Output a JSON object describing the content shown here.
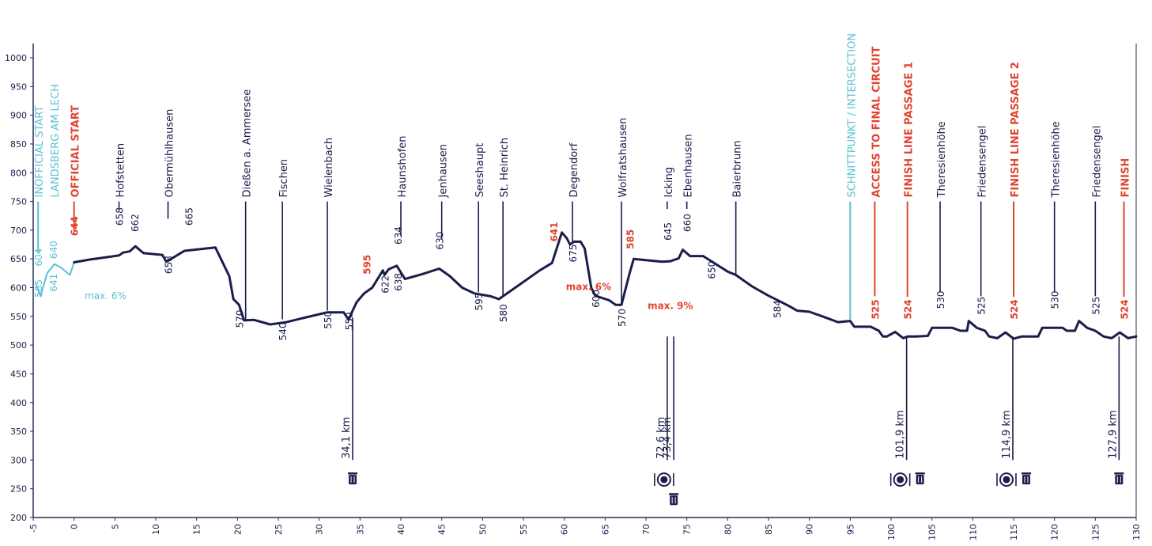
{
  "colors": {
    "navy": "#1b1d4b",
    "red": "#e0432f",
    "teal": "#5cc1d3",
    "axis": "#2a2c57"
  },
  "chart_data": {
    "type": "line",
    "title": "",
    "xlabel": "",
    "ylabel": "",
    "xlim": [
      -5,
      130
    ],
    "ylim": [
      200,
      1000
    ],
    "x_ticks": [
      -5,
      0,
      5,
      10,
      15,
      20,
      25,
      30,
      35,
      40,
      45,
      50,
      55,
      60,
      65,
      70,
      75,
      80,
      85,
      90,
      95,
      100,
      105,
      110,
      115,
      120,
      125,
      130
    ],
    "y_ticks": [
      200,
      250,
      300,
      350,
      400,
      450,
      500,
      550,
      600,
      650,
      700,
      750,
      800,
      850,
      900,
      950,
      1000
    ],
    "series": [
      {
        "name": "unofficial-start-profile",
        "color": "teal",
        "points": [
          [
            -4.6,
            604
          ],
          [
            -4.1,
            585
          ],
          [
            -3.3,
            625
          ],
          [
            -2.4,
            641
          ],
          [
            -1.6,
            635
          ],
          [
            -0.5,
            622
          ],
          [
            0,
            644
          ]
        ]
      },
      {
        "name": "elevation-profile",
        "color": "navy",
        "points": [
          [
            0,
            644
          ],
          [
            2,
            649
          ],
          [
            4,
            653
          ],
          [
            5.5,
            656
          ],
          [
            6,
            661
          ],
          [
            6.8,
            663
          ],
          [
            7.5,
            672
          ],
          [
            8.5,
            660
          ],
          [
            10.8,
            657
          ],
          [
            11.3,
            645
          ],
          [
            13.5,
            664
          ],
          [
            17.3,
            670
          ],
          [
            19,
            620
          ],
          [
            19.5,
            580
          ],
          [
            20.2,
            570
          ],
          [
            20.8,
            543
          ],
          [
            22,
            544
          ],
          [
            24,
            536
          ],
          [
            26,
            540
          ],
          [
            28,
            547
          ],
          [
            31,
            557
          ],
          [
            33,
            557
          ],
          [
            33.6,
            544
          ],
          [
            34.1,
            560
          ],
          [
            34.6,
            575
          ],
          [
            35.5,
            590
          ],
          [
            36.5,
            600
          ],
          [
            37.8,
            630
          ],
          [
            38,
            622
          ],
          [
            38.5,
            632
          ],
          [
            39.5,
            638
          ],
          [
            40.5,
            615
          ],
          [
            42.5,
            623
          ],
          [
            44.7,
            633
          ],
          [
            46,
            620
          ],
          [
            47.5,
            600
          ],
          [
            49,
            590
          ],
          [
            51,
            585
          ],
          [
            52,
            580
          ],
          [
            54,
            600
          ],
          [
            57,
            630
          ],
          [
            58.5,
            643
          ],
          [
            59.7,
            696
          ],
          [
            60.3,
            686
          ],
          [
            60.7,
            675
          ],
          [
            61.2,
            680
          ],
          [
            62,
            680
          ],
          [
            62.5,
            668
          ],
          [
            63.3,
            600
          ],
          [
            63.8,
            586
          ],
          [
            65.5,
            578
          ],
          [
            66.3,
            570
          ],
          [
            67,
            570
          ],
          [
            68,
            625
          ],
          [
            68.5,
            650
          ],
          [
            72,
            645
          ],
          [
            73,
            646
          ],
          [
            74,
            651
          ],
          [
            74.5,
            666
          ],
          [
            75.4,
            655
          ],
          [
            77,
            655
          ],
          [
            80,
            628
          ],
          [
            81,
            622
          ],
          [
            82,
            612
          ],
          [
            83,
            602
          ],
          [
            85,
            586
          ],
          [
            86,
            579
          ],
          [
            87.5,
            568
          ],
          [
            88.5,
            560
          ],
          [
            90,
            558
          ],
          [
            92,
            548
          ],
          [
            93.5,
            540
          ],
          [
            95,
            542
          ],
          [
            95.5,
            532
          ],
          [
            97.5,
            532
          ],
          [
            98.5,
            525
          ],
          [
            99,
            515
          ],
          [
            99.5,
            515
          ],
          [
            100.5,
            523
          ],
          [
            101.5,
            512
          ],
          [
            102,
            515
          ],
          [
            103,
            515
          ],
          [
            104.5,
            516
          ],
          [
            105,
            530
          ],
          [
            106,
            530
          ],
          [
            107.5,
            530
          ],
          [
            108.5,
            525
          ],
          [
            109.3,
            525
          ],
          [
            109.5,
            542
          ],
          [
            110.5,
            530
          ],
          [
            111.5,
            525
          ],
          [
            112,
            515
          ],
          [
            113,
            512
          ],
          [
            114,
            522
          ],
          [
            115,
            511
          ],
          [
            116,
            515
          ],
          [
            118,
            515
          ],
          [
            118.5,
            530
          ],
          [
            119,
            530
          ],
          [
            121,
            530
          ],
          [
            121.5,
            525
          ],
          [
            122.5,
            525
          ],
          [
            123,
            542
          ],
          [
            124,
            530
          ],
          [
            125,
            525
          ],
          [
            126,
            515
          ],
          [
            127,
            512
          ],
          [
            128,
            522
          ],
          [
            129,
            512
          ],
          [
            130,
            515
          ]
        ]
      }
    ],
    "places": [
      {
        "name": "INOFFICIAL START",
        "x": -4.4,
        "tick_top": 750,
        "tick_bottom": 660,
        "color": "teal"
      },
      {
        "name": "LANDSBERG AM LECH",
        "x": -2.5,
        "tick_top": null,
        "tick_bottom": null,
        "color": "teal"
      },
      {
        "name": "OFFICIAL START",
        "x": 0,
        "tick_top": 750,
        "tick_bottom": 700,
        "color": "red"
      },
      {
        "name": "Hofstetten",
        "x": 5.5,
        "tick_top": 750,
        "tick_bottom": 737,
        "color": "navy"
      },
      {
        "name": "Obermühlhausen",
        "x": 11.5,
        "tick_top": 750,
        "tick_bottom": 720,
        "color": "navy"
      },
      {
        "name": "Dießen a. Ammersee",
        "x": 21,
        "tick_top": 750,
        "tick_bottom": 545,
        "color": "navy"
      },
      {
        "name": "Fischen",
        "x": 25.5,
        "tick_top": 750,
        "tick_bottom": 545,
        "color": "navy"
      },
      {
        "name": "Wielenbach",
        "x": 31,
        "tick_top": 750,
        "tick_bottom": 560,
        "color": "navy"
      },
      {
        "name": "Haunshofen",
        "x": 40,
        "tick_top": 750,
        "tick_bottom": 690,
        "color": "navy"
      },
      {
        "name": "Jenhausen",
        "x": 45,
        "tick_top": 750,
        "tick_bottom": 685,
        "color": "navy"
      },
      {
        "name": "Seeshaupt",
        "x": 49.5,
        "tick_top": 750,
        "tick_bottom": 592,
        "color": "navy"
      },
      {
        "name": "St. Heinrich",
        "x": 52.5,
        "tick_top": 750,
        "tick_bottom": 584,
        "color": "navy"
      },
      {
        "name": "Degendorf",
        "x": 61,
        "tick_top": 750,
        "tick_bottom": 680,
        "color": "navy"
      },
      {
        "name": "Wolfratshausen",
        "x": 67,
        "tick_top": 750,
        "tick_bottom": 572,
        "color": "navy"
      },
      {
        "name": "Icking",
        "x": 72.6,
        "tick_top": 750,
        "tick_bottom": 737,
        "color": "navy"
      },
      {
        "name": "Ebenhausen",
        "x": 75,
        "tick_top": 750,
        "tick_bottom": 737,
        "color": "navy"
      },
      {
        "name": "Baierbrunn",
        "x": 81,
        "tick_top": 750,
        "tick_bottom": 624,
        "color": "navy"
      },
      {
        "name": "SCHNITTPUNKT / INTERSECTION",
        "x": 95,
        "tick_top": 750,
        "tick_bottom": 545,
        "color": "teal"
      },
      {
        "name": "ACCESS TO FINAL CIRCUIT",
        "x": 98,
        "tick_top": 750,
        "tick_bottom": 585,
        "color": "red"
      },
      {
        "name": "FINISH LINE PASSAGE 1",
        "x": 102,
        "tick_top": 750,
        "tick_bottom": 584,
        "color": "red"
      },
      {
        "name": "Theresienhöhe",
        "x": 106,
        "tick_top": 750,
        "tick_bottom": 593,
        "color": "navy"
      },
      {
        "name": "Friedensengel",
        "x": 111,
        "tick_top": 750,
        "tick_bottom": 585,
        "color": "navy"
      },
      {
        "name": "FINISH LINE PASSAGE 2",
        "x": 115,
        "tick_top": 750,
        "tick_bottom": 584,
        "color": "red"
      },
      {
        "name": "Theresienhöhe",
        "x": 120,
        "tick_top": 750,
        "tick_bottom": 593,
        "color": "navy"
      },
      {
        "name": "Friedensengel",
        "x": 125,
        "tick_top": 750,
        "tick_bottom": 585,
        "color": "navy"
      },
      {
        "name": "FINISH",
        "x": 128.5,
        "tick_top": 750,
        "tick_bottom": 584,
        "color": "red"
      }
    ],
    "elevation_labels": [
      {
        "text": "585",
        "x": -4.4,
        "y": 583,
        "color": "teal"
      },
      {
        "text": "604",
        "x": -4.4,
        "y": 637,
        "color": "teal"
      },
      {
        "text": "641",
        "x": -2.6,
        "y": 593,
        "color": "teal"
      },
      {
        "text": "640",
        "x": -2.6,
        "y": 650,
        "color": "teal"
      },
      {
        "text": "644",
        "x": 0,
        "y": 690,
        "color": "red"
      },
      {
        "text": "658",
        "x": 5.5,
        "y": 708,
        "color": "navy"
      },
      {
        "text": "662",
        "x": 7.4,
        "y": 697,
        "color": "navy"
      },
      {
        "text": "658",
        "x": 11.5,
        "y": 624,
        "color": "navy"
      },
      {
        "text": "665",
        "x": 14,
        "y": 708,
        "color": "navy"
      },
      {
        "text": "570",
        "x": 20.2,
        "y": 530,
        "color": "navy"
      },
      {
        "text": "540",
        "x": 25.5,
        "y": 508,
        "color": "navy"
      },
      {
        "text": "550",
        "x": 31,
        "y": 528,
        "color": "navy"
      },
      {
        "text": "550",
        "x": 33.6,
        "y": 526,
        "color": "navy"
      },
      {
        "text": "595",
        "x": 35.8,
        "y": 623,
        "color": "red"
      },
      {
        "text": "622",
        "x": 38,
        "y": 590,
        "color": "navy"
      },
      {
        "text": "634",
        "x": 39.6,
        "y": 675,
        "color": "navy"
      },
      {
        "text": "638",
        "x": 39.6,
        "y": 594,
        "color": "navy"
      },
      {
        "text": "630",
        "x": 44.7,
        "y": 666,
        "color": "navy"
      },
      {
        "text": "595",
        "x": 49.5,
        "y": 560,
        "color": "navy"
      },
      {
        "text": "580",
        "x": 52.5,
        "y": 540,
        "color": "navy"
      },
      {
        "text": "641",
        "x": 58.7,
        "y": 680,
        "color": "red"
      },
      {
        "text": "675",
        "x": 61,
        "y": 644,
        "color": "navy"
      },
      {
        "text": "600",
        "x": 63.8,
        "y": 565,
        "color": "navy"
      },
      {
        "text": "585",
        "x": 68,
        "y": 667,
        "color": "red"
      },
      {
        "text": "570",
        "x": 67,
        "y": 532,
        "color": "navy"
      },
      {
        "text": "645",
        "x": 72.6,
        "y": 682,
        "color": "navy"
      },
      {
        "text": "660",
        "x": 75,
        "y": 697,
        "color": "navy"
      },
      {
        "text": "650",
        "x": 78,
        "y": 615,
        "color": "navy"
      },
      {
        "text": "584",
        "x": 86,
        "y": 547,
        "color": "navy"
      },
      {
        "text": "525",
        "x": 98,
        "y": 545,
        "color": "red"
      },
      {
        "text": "524",
        "x": 102,
        "y": 545,
        "color": "red"
      },
      {
        "text": "530",
        "x": 106,
        "y": 563,
        "color": "navy"
      },
      {
        "text": "525",
        "x": 111,
        "y": 553,
        "color": "navy"
      },
      {
        "text": "524",
        "x": 115,
        "y": 545,
        "color": "red"
      },
      {
        "text": "530",
        "x": 120,
        "y": 563,
        "color": "navy"
      },
      {
        "text": "525",
        "x": 125,
        "y": 553,
        "color": "navy"
      },
      {
        "text": "524",
        "x": 128.5,
        "y": 545,
        "color": "red"
      }
    ],
    "annotations": [
      {
        "text": "max. 6%",
        "x": 1.3,
        "y": 580,
        "color": "teal"
      },
      {
        "text": "max. 6%",
        "x": 60.2,
        "y": 596,
        "color": "red"
      },
      {
        "text": "max. 9%",
        "x": 70.2,
        "y": 563,
        "color": "red"
      }
    ],
    "feed_zones": [
      {
        "km": "34,1 km",
        "x": 34.1,
        "icons": [
          "bin"
        ]
      },
      {
        "km": "72,6 km",
        "x": 72.6,
        "icons": [
          "food"
        ]
      },
      {
        "km": "73,4 km",
        "x": 73.4,
        "icons": [
          "bin"
        ]
      },
      {
        "km": "101,9 km",
        "x": 101.9,
        "icons": [
          "food",
          "bin"
        ]
      },
      {
        "km": "114,9 km",
        "x": 114.9,
        "icons": [
          "food",
          "bin"
        ]
      },
      {
        "km": "127,9 km",
        "x": 127.9,
        "icons": [
          "bin"
        ]
      }
    ]
  }
}
